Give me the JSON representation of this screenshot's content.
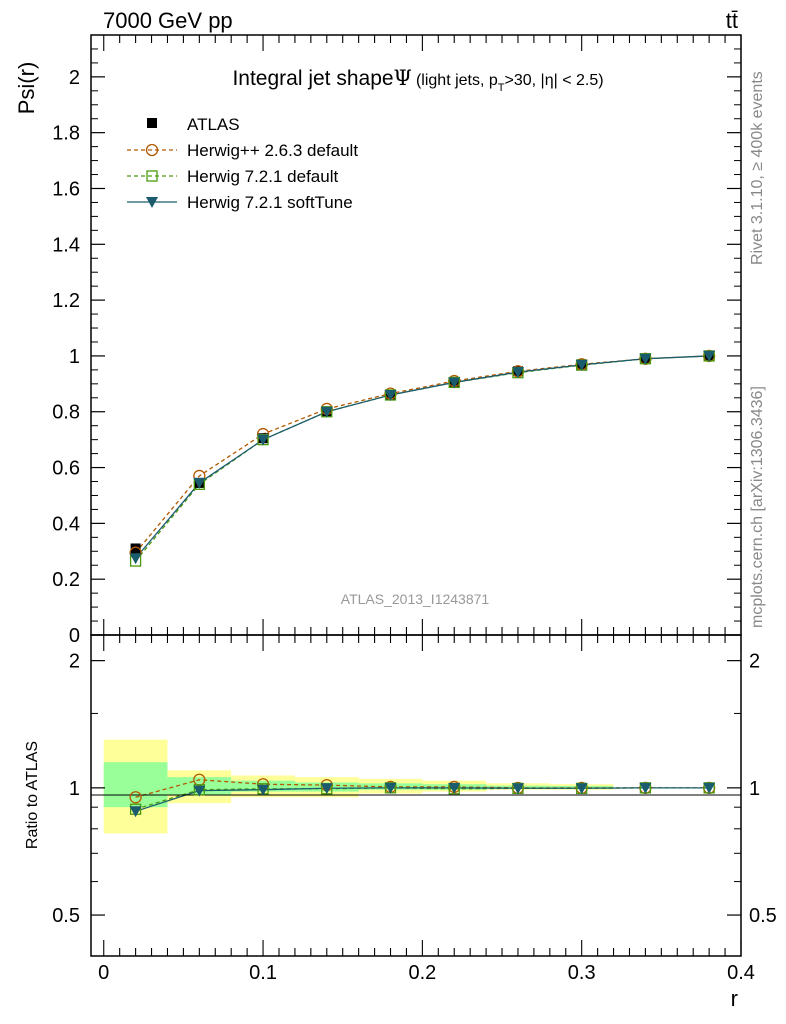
{
  "chart_data": [
    {
      "type": "line",
      "title_main": "Integral jet shape",
      "title_symbol": "Ψ",
      "title_sub_pre": "(light jets, p",
      "title_sub_T": "T",
      "title_sub_post": ">30, |η| < 2.5)",
      "top_left_label": "7000 GeV pp",
      "top_right_label": "tt̄",
      "ylabel": "Psi(r)",
      "ylim": [
        0,
        2.15
      ],
      "yticks": [
        0,
        0.2,
        0.4,
        0.6,
        0.8,
        1,
        1.2,
        1.4,
        1.6,
        1.8,
        2
      ],
      "ytick_labels": [
        "0",
        "0.2",
        "0.4",
        "0.6",
        "0.8",
        "1",
        "1.2",
        "1.4",
        "1.6",
        "1.8",
        "2"
      ],
      "xlim": [
        -0.008,
        0.4
      ],
      "x": [
        0.02,
        0.06,
        0.1,
        0.14,
        0.18,
        0.22,
        0.26,
        0.3,
        0.34,
        0.38
      ],
      "series": [
        {
          "name": "ATLAS",
          "marker": "square-filled",
          "color": "#000000",
          "values": [
            0.31,
            0.545,
            0.705,
            0.8,
            0.86,
            0.905,
            0.945,
            0.97,
            0.99,
            1.0
          ]
        },
        {
          "name": "Herwig++ 2.6.3 default",
          "marker": "circle-open",
          "color": "#b35900",
          "dash": true,
          "values": [
            0.295,
            0.57,
            0.72,
            0.81,
            0.865,
            0.91,
            0.945,
            0.97,
            0.99,
            1.0
          ]
        },
        {
          "name": "Herwig 7.2.1 default",
          "marker": "square-open",
          "color": "#4c9a0f",
          "dash": true,
          "values": [
            0.265,
            0.54,
            0.7,
            0.8,
            0.86,
            0.905,
            0.94,
            0.967,
            0.99,
            1.0
          ]
        },
        {
          "name": "Herwig 7.2.1 softTune",
          "marker": "triangle-down",
          "color": "#1a5c6e",
          "dash": false,
          "values": [
            0.275,
            0.545,
            0.7,
            0.8,
            0.86,
            0.905,
            0.942,
            0.968,
            0.99,
            1.0
          ]
        }
      ],
      "annotation": "ATLAS_2013_I1243871",
      "side_label_top": "Rivet 3.1.10, ≥ 400k events",
      "side_label_bottom": "mcplots.cern.ch [arXiv:1306.3436]"
    },
    {
      "type": "line",
      "ylabel": "Ratio to ATLAS",
      "xlabel": "r",
      "ylim": [
        0.4,
        2.3
      ],
      "yscale": "log",
      "yticks": [
        0.5,
        1,
        2
      ],
      "ytick_labels": [
        "0.5",
        "1",
        "2"
      ],
      "xlim": [
        -0.008,
        0.4
      ],
      "xticks": [
        0,
        0.1,
        0.2,
        0.3,
        0.4
      ],
      "xtick_labels": [
        "0",
        "0.1",
        "0.2",
        "0.3",
        "0.4"
      ],
      "x": [
        0.02,
        0.06,
        0.1,
        0.14,
        0.18,
        0.22,
        0.26,
        0.3,
        0.34,
        0.38
      ],
      "bin_edges": [
        0,
        0.04,
        0.08,
        0.12,
        0.16,
        0.2,
        0.24,
        0.28,
        0.32,
        0.36,
        0.4
      ],
      "band_yellow": [
        [
          0.78,
          1.3
        ],
        [
          0.92,
          1.1
        ],
        [
          0.95,
          1.07
        ],
        [
          0.95,
          1.06
        ],
        [
          0.97,
          1.05
        ],
        [
          0.98,
          1.04
        ],
        [
          0.99,
          1.025
        ],
        [
          0.99,
          1.02
        ],
        [
          1.0,
          1.0
        ],
        [
          1.0,
          1.0
        ]
      ],
      "band_green": [
        [
          0.9,
          1.15
        ],
        [
          0.96,
          1.06
        ],
        [
          0.98,
          1.04
        ],
        [
          0.98,
          1.03
        ],
        [
          0.99,
          1.025
        ],
        [
          0.99,
          1.02
        ],
        [
          0.995,
          1.012
        ],
        [
          0.995,
          1.01
        ],
        [
          1.0,
          1.0
        ],
        [
          1.0,
          1.0
        ]
      ],
      "series": [
        {
          "name": "Herwig++ 2.6.3 default",
          "color": "#b35900",
          "values": [
            0.95,
            1.045,
            1.02,
            1.015,
            1.005,
            1.005,
            1.0,
            1.0,
            1.0,
            1.0
          ]
        },
        {
          "name": "Herwig 7.2.1 default",
          "color": "#4c9a0f",
          "values": [
            0.89,
            0.99,
            0.995,
            0.995,
            1.0,
            0.995,
            0.997,
            0.997,
            1.0,
            1.0
          ]
        },
        {
          "name": "Herwig 7.2.1 softTune",
          "color": "#1a5c6e",
          "values": [
            0.88,
            0.985,
            0.99,
            0.998,
            1.0,
            1.0,
            0.998,
            0.998,
            1.0,
            1.0
          ]
        }
      ]
    }
  ]
}
